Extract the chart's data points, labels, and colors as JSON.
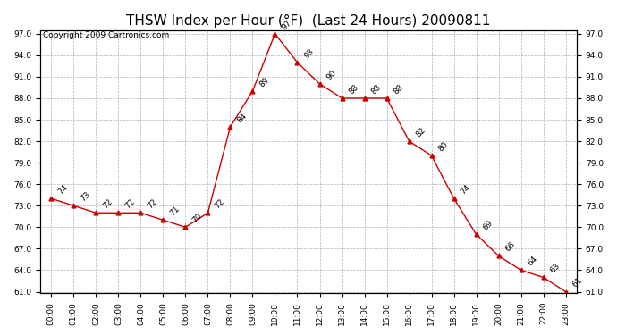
{
  "title": "THSW Index per Hour (°F)  (Last 24 Hours) 20090811",
  "copyright": "Copyright 2009 Cartronics.com",
  "hours": [
    "00:00",
    "01:00",
    "02:00",
    "03:00",
    "04:00",
    "05:00",
    "06:00",
    "07:00",
    "08:00",
    "09:00",
    "10:00",
    "11:00",
    "12:00",
    "13:00",
    "14:00",
    "15:00",
    "16:00",
    "17:00",
    "18:00",
    "19:00",
    "20:00",
    "21:00",
    "22:00",
    "23:00"
  ],
  "values": [
    74,
    73,
    72,
    72,
    72,
    71,
    70,
    72,
    84,
    89,
    97,
    93,
    90,
    88,
    88,
    88,
    82,
    80,
    74,
    69,
    66,
    64,
    63,
    61
  ],
  "line_color": "#cc0000",
  "marker_color": "#cc0000",
  "bg_color": "#ffffff",
  "grid_color": "#b0b0b0",
  "ylim_min": 61.0,
  "ylim_max": 97.0,
  "ytick_step": 3.0,
  "title_fontsize": 11,
  "label_fontsize": 6.5,
  "copyright_fontsize": 6.5,
  "tick_fontsize": 6.5,
  "annot_fontsize": 6.5
}
